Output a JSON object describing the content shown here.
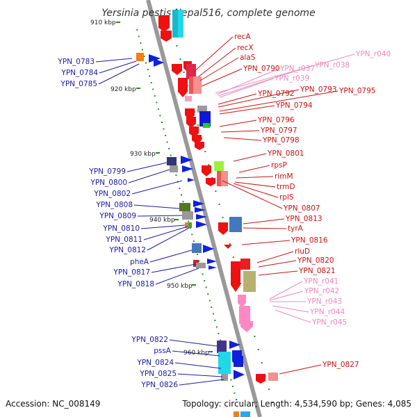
{
  "title": "Yersinia pestis Nepal516, complete genome",
  "footer": {
    "accession": "Accession: NC_008149",
    "stats": "Topology: circular; Length: 4,534,590 bp; Genes: 4,085"
  },
  "colors": {
    "left_labels": "#1a1aa6",
    "right_labels": "#cc1111",
    "rna_labels": "#ee88bb",
    "backbone": "#999999"
  },
  "kbp_marks": [
    "910 kbp",
    "920 kbp",
    "930 kbp",
    "940 kbp",
    "950 kbp",
    "960 kbp"
  ],
  "left_labels": [
    "YPN_0783",
    "YPN_0784",
    "YPN_0785",
    "YPN_0799",
    "YPN_0800",
    "YPN_0802",
    "YPN_0808",
    "YPN_0809",
    "YPN_0810",
    "YPN_0811",
    "YPN_0812",
    "pheA",
    "YPN_0817",
    "YPN_0818",
    "YPN_0822",
    "pssA",
    "YPN_0824",
    "YPN_0825",
    "YPN_0826"
  ],
  "right_labels": [
    "recA",
    "recX",
    "alaS",
    "YPN_0790",
    "YPN_0792",
    "YPN_0793",
    "YPN_0795",
    "YPN_0794",
    "YPN_0796",
    "YPN_0797",
    "YPN_0798",
    "YPN_0801",
    "rpsP",
    "rimM",
    "trmD",
    "rplS",
    "YPN_0807",
    "YPN_0813",
    "tyrA",
    "YPN_0816",
    "rluD",
    "YPN_0820",
    "YPN_0821",
    "YPN_0827"
  ],
  "rna_labels": [
    "YPN_r040",
    "YPN_r037",
    "YPN_r038",
    "YPN_r039",
    "YPN_r041",
    "YPN_r042",
    "YPN_r043",
    "YPN_r044",
    "YPN_r045"
  ]
}
